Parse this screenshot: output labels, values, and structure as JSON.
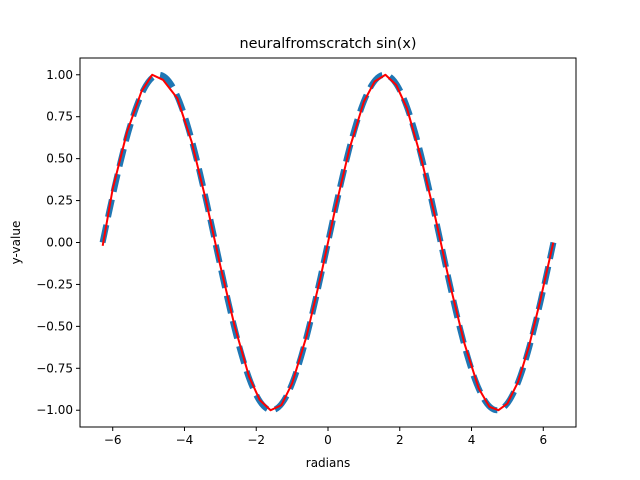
{
  "chart_data": {
    "type": "line",
    "title": "neuralfromscratch sin(x)",
    "xlabel": "radians",
    "ylabel": "y-value",
    "xlim": [
      -6.912,
      6.912
    ],
    "ylim": [
      -1.1,
      1.1
    ],
    "xticks": [
      -6,
      -4,
      -2,
      0,
      2,
      4,
      6
    ],
    "xtick_labels": [
      "−6",
      "−4",
      "−2",
      "0",
      "2",
      "4",
      "6"
    ],
    "yticks": [
      -1.0,
      -0.75,
      -0.5,
      -0.25,
      0.0,
      0.25,
      0.5,
      0.75,
      1.0
    ],
    "ytick_labels": [
      "−1.00",
      "−0.75",
      "−0.50",
      "−0.25",
      "0.00",
      "0.25",
      "0.50",
      "0.75",
      "1.00"
    ],
    "grid": false,
    "series": [
      {
        "style": "dashed",
        "color": "#1f77b4",
        "function": "sin",
        "x_range": [
          -6.283,
          6.283
        ]
      },
      {
        "style": "solid",
        "color": "#ff0000",
        "x": [
          -6.28,
          -6.0,
          -5.6,
          -5.2,
          -4.9,
          -4.6,
          -4.2,
          -3.8,
          -3.4,
          -3.0,
          -2.6,
          -2.2,
          -1.9,
          -1.6,
          -1.3,
          -1.0,
          -0.6,
          -0.2,
          0.2,
          0.6,
          1.0,
          1.3,
          1.6,
          1.9,
          2.2,
          2.6,
          3.0,
          3.4,
          3.8,
          4.2,
          4.5,
          4.75,
          5.0,
          5.3,
          5.6,
          5.9,
          6.28
        ],
        "y": [
          -0.02,
          0.32,
          0.66,
          0.9,
          1.0,
          0.97,
          0.86,
          0.6,
          0.25,
          -0.14,
          -0.5,
          -0.8,
          -0.94,
          -1.0,
          -0.97,
          -0.84,
          -0.56,
          -0.2,
          0.2,
          0.56,
          0.84,
          0.96,
          1.0,
          0.94,
          0.8,
          0.5,
          0.14,
          -0.25,
          -0.6,
          -0.87,
          -0.98,
          -1.0,
          -0.96,
          -0.83,
          -0.62,
          -0.36,
          0.0
        ]
      }
    ]
  }
}
